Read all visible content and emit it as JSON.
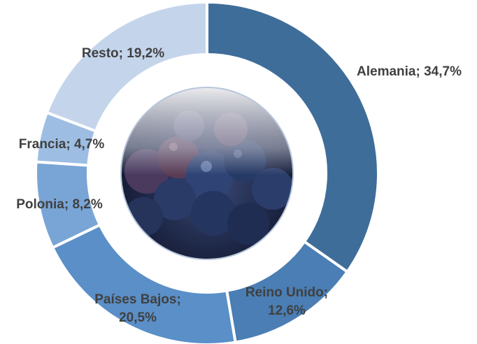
{
  "chart_data": {
    "type": "donut",
    "values": [
      34.7,
      12.6,
      20.5,
      8.2,
      4.7,
      19.2
    ],
    "value_labels": [
      "Alemania; 34,7%",
      "Reino Unido; 12,6%",
      "Países Bajos; 20,5%",
      "Polonia; 8,2%",
      "Francia; 4,7%",
      "Resto; 19,2%"
    ],
    "colors": [
      "#3f6d9a",
      "#4a7eb4",
      "#5a8fc8",
      "#79a5d6",
      "#9dbde3",
      "#c4d5eb"
    ]
  }
}
